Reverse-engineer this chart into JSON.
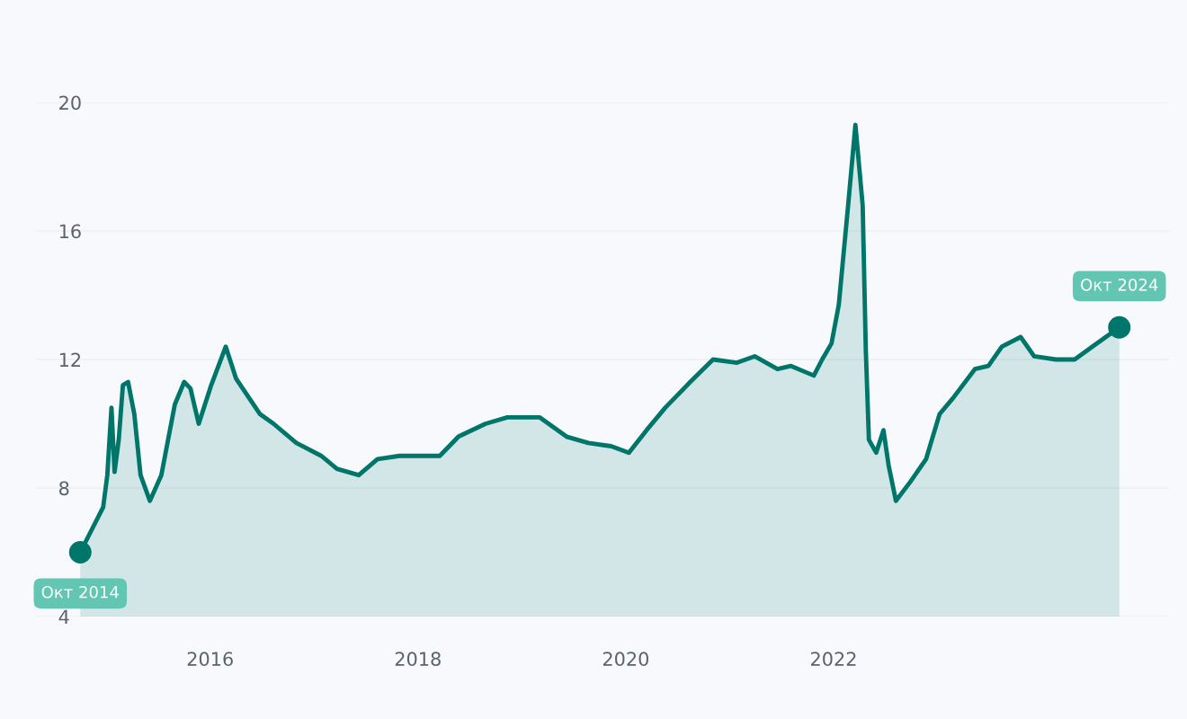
{
  "chart_data": {
    "type": "area",
    "color": "#00766a",
    "x": [
      2014.75,
      2014.97,
      2015.01,
      2015.05,
      2015.08,
      2015.12,
      2015.16,
      2015.21,
      2015.27,
      2015.33,
      2015.42,
      2015.53,
      2015.66,
      2015.75,
      2015.81,
      2015.89,
      2016.01,
      2016.15,
      2016.25,
      2016.48,
      2016.61,
      2016.83,
      2017.07,
      2017.22,
      2017.43,
      2017.61,
      2017.82,
      2018.04,
      2018.21,
      2018.39,
      2018.65,
      2018.86,
      2019.04,
      2019.17,
      2019.43,
      2019.64,
      2019.86,
      2020.03,
      2020.2,
      2020.38,
      2020.62,
      2020.84,
      2021.07,
      2021.24,
      2021.46,
      2021.59,
      2021.81,
      2021.89,
      2021.98,
      2022.05,
      2022.14,
      2022.21,
      2022.28,
      2022.31,
      2022.34,
      2022.41,
      2022.48,
      2022.53,
      2022.6,
      2022.74,
      2022.89,
      2023.02,
      2023.15,
      2023.36,
      2023.49,
      2023.62,
      2023.8,
      2023.93,
      2024.14,
      2024.32,
      2024.49,
      2024.75
    ],
    "values": [
      6.0,
      7.4,
      8.4,
      10.5,
      8.5,
      9.5,
      11.2,
      11.3,
      10.3,
      8.4,
      7.6,
      8.4,
      10.6,
      11.3,
      11.1,
      10.0,
      11.2,
      12.4,
      11.4,
      10.3,
      10.0,
      9.4,
      9.0,
      8.6,
      8.4,
      8.9,
      9.0,
      9.0,
      9.0,
      9.6,
      10.0,
      10.2,
      10.2,
      10.2,
      9.6,
      9.4,
      9.3,
      9.1,
      9.8,
      10.5,
      11.3,
      12.0,
      11.9,
      12.1,
      11.7,
      11.8,
      11.5,
      12.0,
      12.5,
      13.7,
      16.8,
      19.3,
      16.8,
      12.3,
      9.5,
      9.1,
      9.8,
      8.7,
      7.6,
      8.2,
      8.9,
      10.3,
      10.8,
      11.7,
      11.8,
      12.4,
      12.7,
      12.1,
      12.0,
      12.0,
      12.4,
      13.0
    ],
    "xlim": [
      2014.32,
      2025.23
    ],
    "ylim": [
      4,
      20
    ],
    "xticks": [
      2016,
      2018,
      2020,
      2022
    ],
    "yticks": [
      4,
      8,
      12,
      16,
      20
    ],
    "grid": "y",
    "annotations": [
      {
        "text": "Окт 2014",
        "x": 2014.75,
        "y": 6.0
      },
      {
        "text": "Окт 2024",
        "x": 2024.75,
        "y": 13.0
      }
    ]
  }
}
